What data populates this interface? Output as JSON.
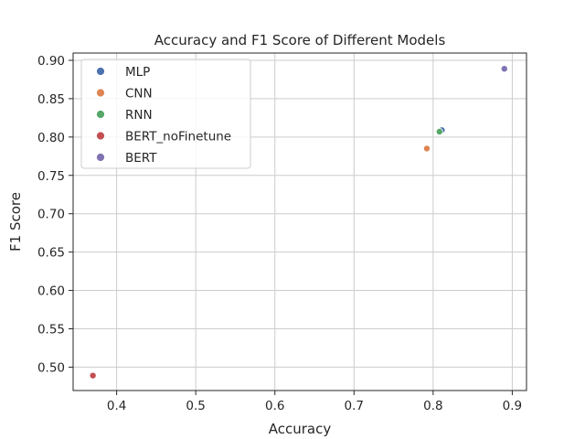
{
  "chart_data": {
    "type": "scatter",
    "title": "Accuracy and F1 Score of Different Models",
    "xlabel": "Accuracy",
    "ylabel": "F1 Score",
    "xlim": [
      0.345,
      0.918
    ],
    "ylim": [
      0.4695,
      0.9095
    ],
    "xticks": [
      0.4,
      0.5,
      0.6,
      0.7,
      0.8,
      0.9
    ],
    "xtick_labels": [
      "0.4",
      "0.5",
      "0.6",
      "0.7",
      "0.8",
      "0.9"
    ],
    "yticks": [
      0.5,
      0.55,
      0.6,
      0.65,
      0.7,
      0.75,
      0.8,
      0.85,
      0.9
    ],
    "ytick_labels": [
      "0.50",
      "0.55",
      "0.60",
      "0.65",
      "0.70",
      "0.75",
      "0.80",
      "0.85",
      "0.90"
    ],
    "grid": true,
    "legend_position": "top-left",
    "series": [
      {
        "name": "MLP",
        "color": "#4c72b0",
        "x": [
          0.811
        ],
        "y": [
          0.809
        ]
      },
      {
        "name": "CNN",
        "color": "#dd8452",
        "x": [
          0.792
        ],
        "y": [
          0.785
        ]
      },
      {
        "name": "RNN",
        "color": "#55a868",
        "x": [
          0.808
        ],
        "y": [
          0.807
        ]
      },
      {
        "name": "BERT_noFinetune",
        "color": "#c44e52",
        "x": [
          0.37
        ],
        "y": [
          0.489
        ]
      },
      {
        "name": "BERT",
        "color": "#8172b3",
        "x": [
          0.89
        ],
        "y": [
          0.889
        ]
      }
    ]
  }
}
